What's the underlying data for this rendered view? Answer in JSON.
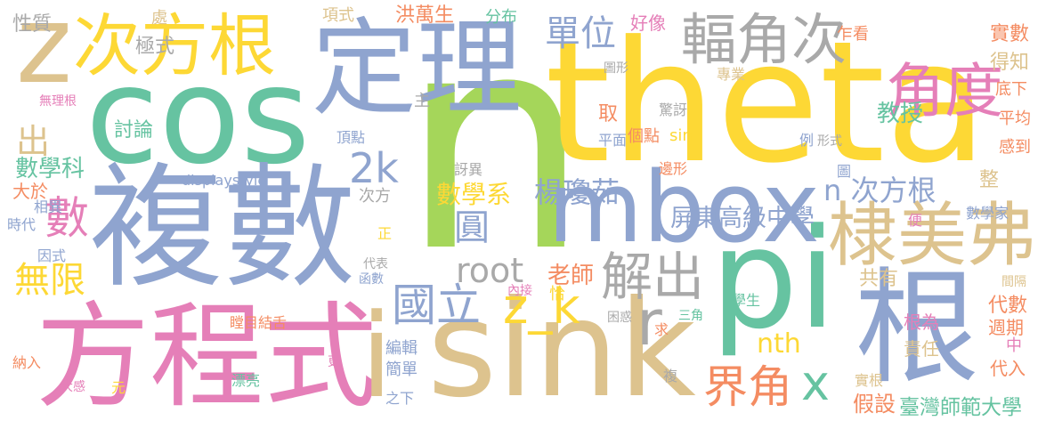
{
  "colors": {
    "yellow": "#fdd835",
    "blue": "#8fa4cf",
    "green": "#66c3a1",
    "pink": "#e57fb8",
    "tan": "#ddc38e",
    "lime": "#a5d65a",
    "orange": "#f48c62",
    "gray": "#a9a9a9"
  },
  "words": [
    {
      "text": "n",
      "color": "lime"
    },
    {
      "text": "theta",
      "color": "yellow"
    },
    {
      "text": "sink",
      "color": "tan"
    },
    {
      "text": "cos",
      "color": "green"
    },
    {
      "text": "pi",
      "color": "green"
    },
    {
      "text": "複數",
      "color": "blue"
    },
    {
      "text": "方程式",
      "color": "pink"
    },
    {
      "text": "定理",
      "color": "blue"
    },
    {
      "text": "mbox",
      "color": "blue"
    },
    {
      "text": "z",
      "color": "tan"
    },
    {
      "text": "次方根",
      "color": "yellow"
    },
    {
      "text": "根",
      "color": "blue"
    },
    {
      "text": "棣美弗",
      "color": "tan"
    },
    {
      "text": "輻角次",
      "color": "gray"
    },
    {
      "text": "角度",
      "color": "pink"
    },
    {
      "text": "單位",
      "color": "blue"
    },
    {
      "text": "i",
      "color": "tan"
    },
    {
      "text": "解出",
      "color": "gray"
    },
    {
      "text": "國立",
      "color": "blue"
    },
    {
      "text": "z_k",
      "color": "yellow"
    },
    {
      "text": "界角",
      "color": "orange"
    },
    {
      "text": "x",
      "color": "green"
    },
    {
      "text": "r",
      "color": "gray"
    },
    {
      "text": "數",
      "color": "pink"
    },
    {
      "text": "出",
      "color": "tan"
    },
    {
      "text": "無限",
      "color": "yellow"
    },
    {
      "text": "2k",
      "color": "blue"
    },
    {
      "text": "圓",
      "color": "blue"
    },
    {
      "text": "root",
      "color": "gray"
    },
    {
      "text": "n 次方根",
      "color": "blue"
    },
    {
      "text": "屏東高級中學",
      "color": "blue"
    },
    {
      "text": "數學系",
      "color": "yellow"
    },
    {
      "text": "楊瓊茹",
      "color": "blue"
    },
    {
      "text": "nth",
      "color": "yellow"
    },
    {
      "text": "教授",
      "color": "green"
    },
    {
      "text": "數學科",
      "color": "green"
    },
    {
      "text": "大於",
      "color": "orange"
    },
    {
      "text": "老師",
      "color": "orange"
    },
    {
      "text": "臺灣師範大學",
      "color": "green"
    },
    {
      "text": "編輯",
      "color": "blue"
    },
    {
      "text": "簡單",
      "color": "blue"
    },
    {
      "text": "責任",
      "color": "tan"
    },
    {
      "text": "代數",
      "color": "orange"
    },
    {
      "text": "週期",
      "color": "orange"
    },
    {
      "text": "假設",
      "color": "orange"
    },
    {
      "text": "根為",
      "color": "pink"
    },
    {
      "text": "共有",
      "color": "tan"
    },
    {
      "text": "討論",
      "color": "green"
    },
    {
      "text": "洪萬生",
      "color": "orange"
    },
    {
      "text": "好像",
      "color": "pink"
    },
    {
      "text": "分布",
      "color": "green"
    },
    {
      "text": "項式",
      "color": "tan"
    },
    {
      "text": "極式",
      "color": "gray"
    },
    {
      "text": "性質",
      "color": "gray"
    },
    {
      "text": "處",
      "color": "tan"
    },
    {
      "text": "乍看",
      "color": "orange"
    },
    {
      "text": "實數",
      "color": "orange"
    },
    {
      "text": "得知",
      "color": "tan"
    },
    {
      "text": "底下",
      "color": "orange"
    },
    {
      "text": "平均",
      "color": "orange"
    },
    {
      "text": "感到",
      "color": "orange"
    },
    {
      "text": "圖形",
      "color": "gray"
    },
    {
      "text": "專業",
      "color": "tan"
    },
    {
      "text": "驚訝",
      "color": "gray"
    },
    {
      "text": "無理根",
      "color": "pink"
    },
    {
      "text": "主",
      "color": "gray"
    },
    {
      "text": "取",
      "color": "orange"
    },
    {
      "text": "個點",
      "color": "orange"
    },
    {
      "text": "平面",
      "color": "blue"
    },
    {
      "text": "sin",
      "color": "yellow"
    },
    {
      "text": "頂點",
      "color": "blue"
    },
    {
      "text": "例",
      "color": "blue"
    },
    {
      "text": "形式",
      "color": "gray"
    },
    {
      "text": "displaystyle",
      "color": "blue"
    },
    {
      "text": "訝異",
      "color": "gray"
    },
    {
      "text": "邊形",
      "color": "orange"
    },
    {
      "text": "圖",
      "color": "blue"
    },
    {
      "text": "整",
      "color": "tan"
    },
    {
      "text": "相異",
      "color": "blue"
    },
    {
      "text": "次方",
      "color": "gray"
    },
    {
      "text": "時代",
      "color": "blue"
    },
    {
      "text": "正",
      "color": "yellow"
    },
    {
      "text": "便",
      "color": "pink"
    },
    {
      "text": "數學家",
      "color": "blue"
    },
    {
      "text": "因式",
      "color": "blue"
    },
    {
      "text": "代表",
      "color": "gray"
    },
    {
      "text": "函數",
      "color": "blue"
    },
    {
      "text": "內接",
      "color": "pink"
    },
    {
      "text": "恰",
      "color": "yellow"
    },
    {
      "text": "瞠目結舌",
      "color": "orange"
    },
    {
      "text": "困惑",
      "color": "gray"
    },
    {
      "text": "三角",
      "color": "green"
    },
    {
      "text": "學生",
      "color": "green"
    },
    {
      "text": "求",
      "color": "orange"
    },
    {
      "text": "間隔",
      "color": "tan"
    },
    {
      "text": "中",
      "color": "pink"
    },
    {
      "text": "代入",
      "color": "orange"
    },
    {
      "text": "納入",
      "color": "orange"
    },
    {
      "text": "更",
      "color": "pink"
    },
    {
      "text": "實根",
      "color": "tan"
    },
    {
      "text": "大感",
      "color": "pink"
    },
    {
      "text": "元",
      "color": "yellow"
    },
    {
      "text": "漂亮",
      "color": "green"
    },
    {
      "text": "複",
      "color": "gray"
    },
    {
      "text": "之下",
      "color": "blue"
    }
  ]
}
